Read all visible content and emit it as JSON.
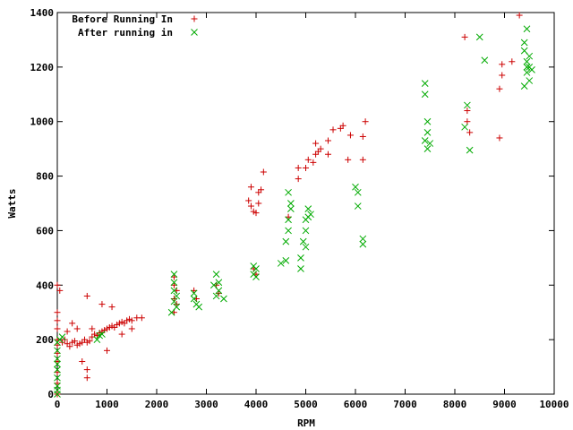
{
  "chart_data": {
    "type": "scatter",
    "title": "",
    "xlabel": "RPM",
    "ylabel": "Watts",
    "xlim": [
      0,
      10000
    ],
    "ylim": [
      0,
      1400
    ],
    "xticks": [
      "0",
      "1000",
      "2000",
      "3000",
      "4000",
      "5000",
      "6000",
      "7000",
      "8000",
      "9000",
      "10000"
    ],
    "yticks": [
      "0",
      "200",
      "400",
      "600",
      "800",
      "1000",
      "1200",
      "1400"
    ],
    "grid": false,
    "legend_position": "top-left",
    "series": [
      {
        "name": "Before Running In",
        "marker": "plus",
        "color": "#cc0000",
        "points": [
          [
            0,
            0
          ],
          [
            0,
            40
          ],
          [
            0,
            80
          ],
          [
            0,
            120
          ],
          [
            0,
            150
          ],
          [
            0,
            180
          ],
          [
            0,
            200
          ],
          [
            0,
            240
          ],
          [
            0,
            270
          ],
          [
            0,
            300
          ],
          [
            0,
            400
          ],
          [
            50,
            380
          ],
          [
            100,
            190
          ],
          [
            150,
            200
          ],
          [
            200,
            185
          ],
          [
            250,
            175
          ],
          [
            300,
            190
          ],
          [
            350,
            195
          ],
          [
            400,
            180
          ],
          [
            450,
            185
          ],
          [
            500,
            190
          ],
          [
            550,
            200
          ],
          [
            600,
            190
          ],
          [
            650,
            195
          ],
          [
            700,
            210
          ],
          [
            750,
            220
          ],
          [
            800,
            215
          ],
          [
            850,
            225
          ],
          [
            900,
            230
          ],
          [
            950,
            235
          ],
          [
            1000,
            240
          ],
          [
            1050,
            245
          ],
          [
            1100,
            250
          ],
          [
            1150,
            245
          ],
          [
            1200,
            255
          ],
          [
            1250,
            260
          ],
          [
            1300,
            265
          ],
          [
            1350,
            260
          ],
          [
            1400,
            270
          ],
          [
            1450,
            275
          ],
          [
            1500,
            270
          ],
          [
            1600,
            280
          ],
          [
            1700,
            280
          ],
          [
            300,
            260
          ],
          [
            400,
            240
          ],
          [
            200,
            230
          ],
          [
            500,
            120
          ],
          [
            600,
            90
          ],
          [
            600,
            60
          ],
          [
            600,
            360
          ],
          [
            900,
            330
          ],
          [
            1100,
            320
          ],
          [
            1000,
            160
          ],
          [
            700,
            240
          ],
          [
            1300,
            220
          ],
          [
            1500,
            240
          ],
          [
            2350,
            430
          ],
          [
            2350,
            400
          ],
          [
            2400,
            380
          ],
          [
            2350,
            350
          ],
          [
            2400,
            330
          ],
          [
            2350,
            300
          ],
          [
            2750,
            380
          ],
          [
            2800,
            350
          ],
          [
            3200,
            400
          ],
          [
            3250,
            370
          ],
          [
            3900,
            760
          ],
          [
            3850,
            710
          ],
          [
            3900,
            690
          ],
          [
            3950,
            670
          ],
          [
            4000,
            665
          ],
          [
            4050,
            700
          ],
          [
            4050,
            740
          ],
          [
            4100,
            750
          ],
          [
            3950,
            460
          ],
          [
            4000,
            440
          ],
          [
            4150,
            815
          ],
          [
            4650,
            650
          ],
          [
            4850,
            790
          ],
          [
            4850,
            830
          ],
          [
            5000,
            830
          ],
          [
            5050,
            860
          ],
          [
            5150,
            850
          ],
          [
            5200,
            880
          ],
          [
            5200,
            920
          ],
          [
            5250,
            890
          ],
          [
            5300,
            900
          ],
          [
            5450,
            930
          ],
          [
            5450,
            880
          ],
          [
            5550,
            970
          ],
          [
            5700,
            975
          ],
          [
            5750,
            985
          ],
          [
            5850,
            860
          ],
          [
            5900,
            950
          ],
          [
            6150,
            860
          ],
          [
            6150,
            945
          ],
          [
            6200,
            1000
          ],
          [
            8200,
            1310
          ],
          [
            8250,
            1040
          ],
          [
            8250,
            1000
          ],
          [
            8300,
            960
          ],
          [
            8900,
            940
          ],
          [
            8900,
            1120
          ],
          [
            8950,
            1170
          ],
          [
            8950,
            1210
          ],
          [
            9150,
            1220
          ],
          [
            9300,
            1390
          ]
        ]
      },
      {
        "name": "After running in",
        "marker": "cross",
        "color": "#00aa00",
        "points": [
          [
            0,
            0
          ],
          [
            0,
            30
          ],
          [
            0,
            60
          ],
          [
            0,
            90
          ],
          [
            0,
            130
          ],
          [
            0,
            160
          ],
          [
            0,
            190
          ],
          [
            50,
            200
          ],
          [
            100,
            210
          ],
          [
            0,
            15
          ],
          [
            0,
            110
          ],
          [
            800,
            200
          ],
          [
            850,
            215
          ],
          [
            900,
            220
          ],
          [
            2350,
            440
          ],
          [
            2350,
            410
          ],
          [
            2350,
            380
          ],
          [
            2350,
            340
          ],
          [
            2400,
            320
          ],
          [
            2300,
            300
          ],
          [
            2400,
            360
          ],
          [
            2750,
            370
          ],
          [
            2800,
            330
          ],
          [
            2850,
            320
          ],
          [
            2750,
            350
          ],
          [
            3200,
            440
          ],
          [
            3250,
            410
          ],
          [
            3250,
            380
          ],
          [
            3200,
            360
          ],
          [
            3150,
            400
          ],
          [
            3350,
            350
          ],
          [
            3950,
            470
          ],
          [
            3950,
            440
          ],
          [
            4000,
            460
          ],
          [
            4000,
            430
          ],
          [
            4500,
            480
          ],
          [
            4600,
            490
          ],
          [
            4600,
            560
          ],
          [
            4650,
            600
          ],
          [
            4650,
            640
          ],
          [
            4700,
            700
          ],
          [
            4650,
            740
          ],
          [
            4700,
            680
          ],
          [
            4900,
            460
          ],
          [
            4900,
            500
          ],
          [
            4950,
            560
          ],
          [
            5000,
            600
          ],
          [
            5000,
            640
          ],
          [
            5050,
            650
          ],
          [
            5050,
            680
          ],
          [
            5100,
            660
          ],
          [
            5000,
            540
          ],
          [
            6000,
            760
          ],
          [
            6050,
            740
          ],
          [
            6050,
            690
          ],
          [
            6150,
            570
          ],
          [
            6150,
            550
          ],
          [
            7400,
            1140
          ],
          [
            7400,
            1100
          ],
          [
            7400,
            930
          ],
          [
            7450,
            1000
          ],
          [
            7450,
            960
          ],
          [
            7450,
            900
          ],
          [
            7500,
            920
          ],
          [
            8200,
            980
          ],
          [
            8250,
            1060
          ],
          [
            8300,
            895
          ],
          [
            8500,
            1310
          ],
          [
            8600,
            1225
          ],
          [
            9400,
            1290
          ],
          [
            9400,
            1260
          ],
          [
            9450,
            1340
          ],
          [
            9450,
            1220
          ],
          [
            9450,
            1180
          ],
          [
            9500,
            1150
          ],
          [
            9500,
            1200
          ],
          [
            9550,
            1190
          ],
          [
            9400,
            1130
          ],
          [
            9450,
            1200
          ],
          [
            9500,
            1240
          ]
        ]
      }
    ]
  }
}
